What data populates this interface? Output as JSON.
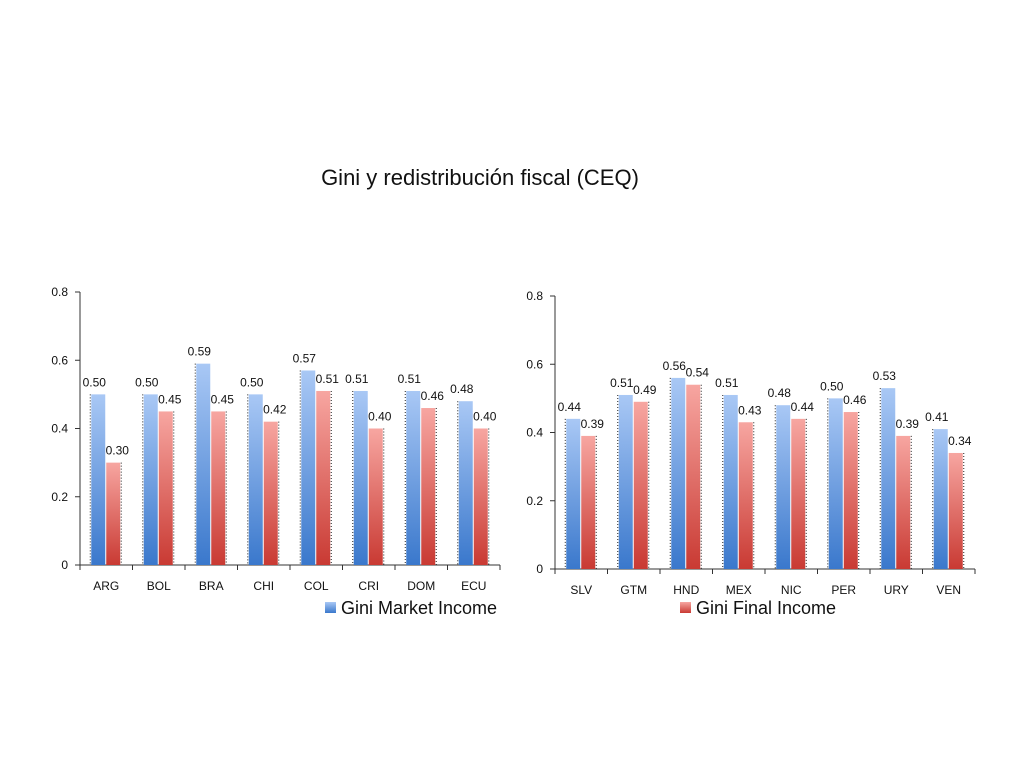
{
  "title": "Gini y redistribución fiscal (CEQ)",
  "colors": {
    "market_top": "#a9c8f5",
    "market_bottom": "#3a78cc",
    "final_top": "#f7a6a1",
    "final_bottom": "#c93a33"
  },
  "legend": {
    "market": "Gini Market Income",
    "final": "Gini Final Income"
  },
  "chart_data": [
    {
      "type": "bar",
      "categories": [
        "ARG",
        "BOL",
        "BRA",
        "CHI",
        "COL",
        "CRI",
        "DOM",
        "ECU"
      ],
      "series": [
        {
          "name": "Gini Market Income",
          "values": [
            0.5,
            0.5,
            0.59,
            0.5,
            0.57,
            0.51,
            0.51,
            0.48
          ],
          "labels": [
            "0.50",
            "0.50",
            "0.59",
            "0.50",
            "0.57",
            "0.51",
            "0.51",
            "0.48"
          ]
        },
        {
          "name": "Gini Final Income",
          "values": [
            0.3,
            0.45,
            0.45,
            0.42,
            0.51,
            0.4,
            0.46,
            0.4
          ],
          "labels": [
            "0.30",
            "0.45",
            "0.45",
            "0.42",
            "0.51",
            "0.40",
            "0.46",
            "0.40"
          ]
        }
      ],
      "ylim": [
        0,
        0.8
      ],
      "yticks": [
        0,
        0.2,
        0.4,
        0.6,
        0.8
      ],
      "ytick_labels": [
        "0",
        "0.2",
        "0.4",
        "0.6",
        "0.8"
      ],
      "legend_position": "bottom-right",
      "grid": false
    },
    {
      "type": "bar",
      "categories": [
        "SLV",
        "GTM",
        "HND",
        "MEX",
        "NIC",
        "PER",
        "URY",
        "VEN"
      ],
      "series": [
        {
          "name": "Gini Market Income",
          "values": [
            0.44,
            0.51,
            0.56,
            0.51,
            0.48,
            0.5,
            0.53,
            0.41
          ],
          "labels": [
            "0.44",
            "0.51",
            "0.56",
            "0.51",
            "0.48",
            "0.50",
            "0.53",
            "0.41"
          ]
        },
        {
          "name": "Gini Final Income",
          "values": [
            0.39,
            0.49,
            0.54,
            0.43,
            0.44,
            0.46,
            0.39,
            0.34
          ],
          "labels": [
            "0.39",
            "0.49",
            "0.54",
            "0.43",
            "0.44",
            "0.46",
            "0.39",
            "0.34"
          ]
        }
      ],
      "ylim": [
        0,
        0.8
      ],
      "yticks": [
        0,
        0.2,
        0.4,
        0.6,
        0.8
      ],
      "ytick_labels": [
        "0",
        "0.2",
        "0.4",
        "0.6",
        "0.8"
      ],
      "legend_position": "bottom-left",
      "grid": false
    }
  ]
}
